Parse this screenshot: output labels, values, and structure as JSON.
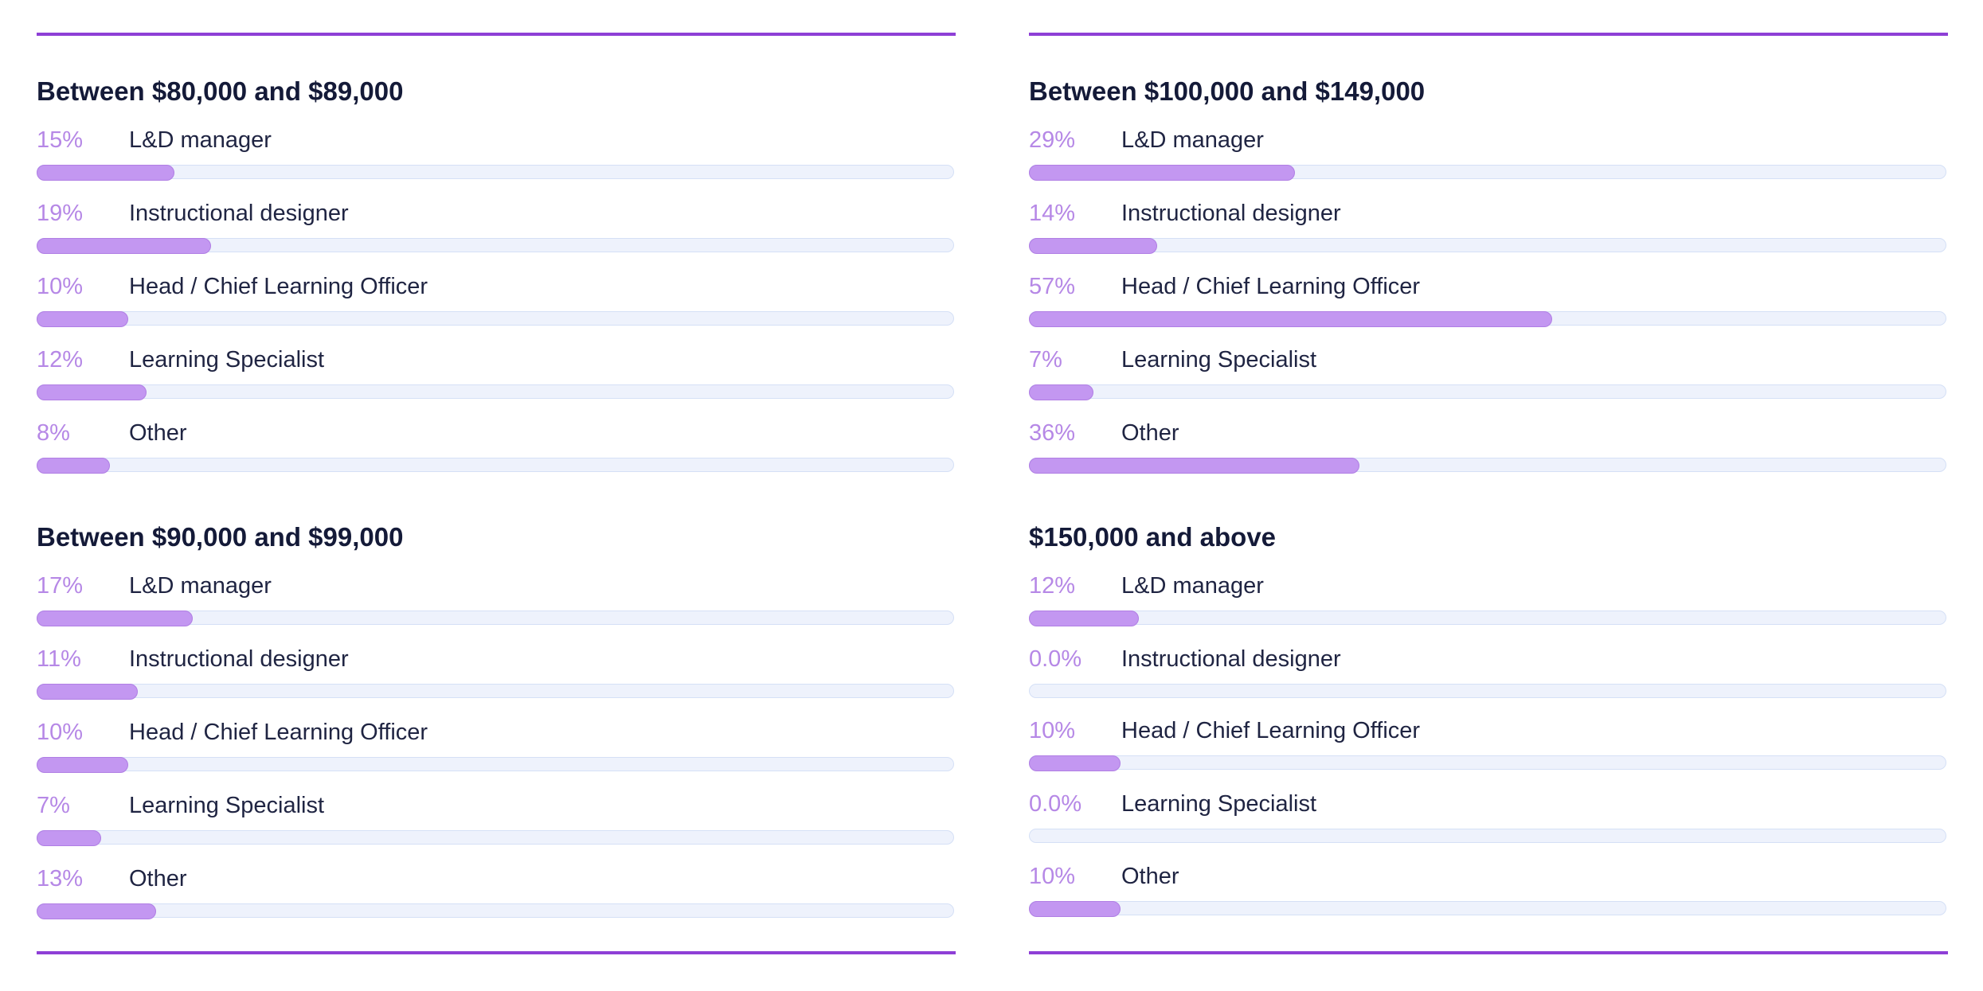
{
  "colors": {
    "accent": "#8e3fd6",
    "bar_fill": "#c397f1",
    "bar_track": "#eef2fc",
    "percent_text": "#b688e6",
    "title_text": "#141a38"
  },
  "chart_data": [
    {
      "type": "bar",
      "orientation": "horizontal",
      "title": "Between $80,000 and $89,000",
      "categories": [
        "L&D manager",
        "Instructional designer",
        "Head / Chief Learning Officer",
        "Learning Specialist",
        "Other"
      ],
      "values": [
        15,
        19,
        10,
        12,
        8
      ],
      "labels": [
        "15%",
        "19%",
        "10%",
        "12%",
        "8%"
      ],
      "xlim": [
        0,
        100
      ]
    },
    {
      "type": "bar",
      "orientation": "horizontal",
      "title": "Between $90,000 and $99,000",
      "categories": [
        "L&D manager",
        "Instructional designer",
        "Head / Chief Learning Officer",
        "Learning Specialist",
        "Other"
      ],
      "values": [
        17,
        11,
        10,
        7,
        13
      ],
      "labels": [
        "17%",
        "11%",
        "10%",
        "7%",
        "13%"
      ],
      "xlim": [
        0,
        100
      ]
    },
    {
      "type": "bar",
      "orientation": "horizontal",
      "title": "Between $100,000 and $149,000",
      "categories": [
        "L&D manager",
        "Instructional designer",
        "Head / Chief Learning Officer",
        "Learning Specialist",
        "Other"
      ],
      "values": [
        29,
        14,
        57,
        7,
        36
      ],
      "labels": [
        "29%",
        "14%",
        "57%",
        "7%",
        "36%"
      ],
      "xlim": [
        0,
        100
      ]
    },
    {
      "type": "bar",
      "orientation": "horizontal",
      "title": "$150,000 and above",
      "categories": [
        "L&D manager",
        "Instructional designer",
        "Head / Chief Learning Officer",
        "Learning Specialist",
        "Other"
      ],
      "values": [
        12,
        0,
        10,
        0,
        10
      ],
      "labels": [
        "12%",
        "0.0%",
        "10%",
        "0.0%",
        "10%"
      ],
      "xlim": [
        0,
        100
      ]
    }
  ]
}
